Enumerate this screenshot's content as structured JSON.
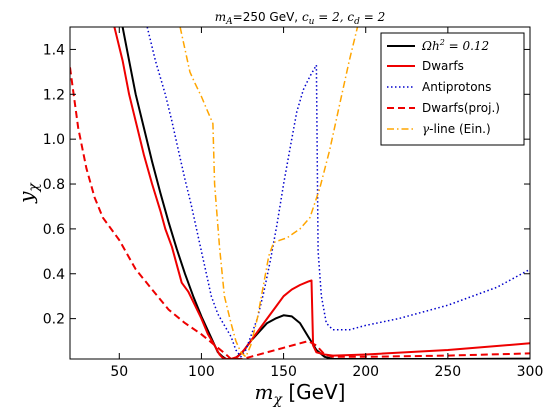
{
  "chart_data": {
    "type": "line",
    "title": "mA=250 GeV, cu=2, cd=2",
    "title_parts": {
      "ma_label": "m",
      "ma_sub": "A",
      "ma_value": "=250 GeV, ",
      "cu_label": "c",
      "cu_sub": "u",
      "cu_value": " = 2, ",
      "cd_label": "c",
      "cd_sub": "d",
      "cd_value": " = 2"
    },
    "xlabel": "mχ [GeV]",
    "xlabel_parts": {
      "var": "m",
      "sub": "χ",
      "unit": " [GeV]"
    },
    "ylabel": "yχ",
    "ylabel_parts": {
      "var": "y",
      "sub": "χ"
    },
    "xlim": [
      20,
      300
    ],
    "ylim": [
      0.02,
      1.5
    ],
    "x_ticks": [
      50,
      100,
      150,
      200,
      250,
      300
    ],
    "x_tick_labels": [
      "50",
      "100",
      "150",
      "200",
      "250",
      "300"
    ],
    "y_ticks": [
      0.2,
      0.4,
      0.6,
      0.8,
      1.0,
      1.2,
      1.4
    ],
    "y_tick_labels": [
      "0.2",
      "0.4",
      "0.6",
      "0.8",
      "1.0",
      "1.2",
      "1.4"
    ],
    "legend_position": "top-right",
    "grid": false,
    "series": [
      {
        "name": "Ωh² = 0.12",
        "legend_parts": {
          "omega": "Ω",
          "h": "h",
          "sup": "2",
          "rest": " = 0.12"
        },
        "color": "#000000",
        "style": "solid",
        "width": 2,
        "segments": [
          [
            [
              52,
              1.5
            ],
            [
              56,
              1.35
            ],
            [
              60,
              1.2
            ],
            [
              65,
              1.05
            ],
            [
              70,
              0.9
            ],
            [
              75,
              0.76
            ],
            [
              80,
              0.63
            ],
            [
              85,
              0.51
            ],
            [
              90,
              0.4
            ],
            [
              95,
              0.3
            ],
            [
              100,
              0.21
            ],
            [
              105,
              0.13
            ],
            [
              110,
              0.05
            ],
            [
              113,
              0.03
            ],
            [
              115,
              0.02
            ]
          ],
          [
            [
              120,
              0.02
            ],
            [
              125,
              0.05
            ],
            [
              130,
              0.1
            ],
            [
              135,
              0.14
            ],
            [
              140,
              0.18
            ],
            [
              145,
              0.2
            ],
            [
              150,
              0.215
            ],
            [
              155,
              0.21
            ],
            [
              160,
              0.18
            ],
            [
              165,
              0.12
            ],
            [
              170,
              0.06
            ],
            [
              175,
              0.03
            ],
            [
              180,
              0.02
            ],
            [
              200,
              0.02
            ],
            [
              250,
              0.02
            ],
            [
              300,
              0.022
            ]
          ]
        ]
      },
      {
        "name": "Dwarfs",
        "color": "#ee0000",
        "style": "solid",
        "width": 2,
        "segments": [
          [
            [
              47,
              1.5
            ],
            [
              52,
              1.35
            ],
            [
              56,
              1.2
            ],
            [
              60,
              1.08
            ],
            [
              65,
              0.93
            ],
            [
              70,
              0.8
            ],
            [
              75,
              0.68
            ],
            [
              78,
              0.6
            ],
            [
              82,
              0.52
            ],
            [
              85,
              0.44
            ],
            [
              88,
              0.36
            ],
            [
              92,
              0.32
            ],
            [
              96,
              0.26
            ],
            [
              100,
              0.2
            ],
            [
              104,
              0.13
            ],
            [
              108,
              0.08
            ],
            [
              111,
              0.04
            ],
            [
              113,
              0.025
            ],
            [
              115,
              0.02
            ],
            [
              118,
              0.02
            ],
            [
              122,
              0.03
            ],
            [
              126,
              0.06
            ],
            [
              130,
              0.1
            ],
            [
              135,
              0.15
            ],
            [
              140,
              0.2
            ],
            [
              145,
              0.25
            ],
            [
              150,
              0.3
            ],
            [
              155,
              0.33
            ],
            [
              160,
              0.35
            ],
            [
              165,
              0.365
            ],
            [
              167,
              0.37
            ],
            [
              168,
              0.08
            ],
            [
              170,
              0.05
            ],
            [
              175,
              0.04
            ],
            [
              180,
              0.035
            ],
            [
              200,
              0.04
            ],
            [
              250,
              0.06
            ],
            [
              300,
              0.09
            ]
          ]
        ]
      },
      {
        "name": "Antiprotons",
        "color": "#0000cc",
        "style": "dotted",
        "width": 1.5,
        "segments": [
          [
            [
              67,
              1.5
            ],
            [
              72,
              1.35
            ],
            [
              78,
              1.2
            ],
            [
              82,
              1.08
            ],
            [
              86,
              0.95
            ],
            [
              90,
              0.82
            ],
            [
              94,
              0.7
            ],
            [
              97,
              0.6
            ],
            [
              100,
              0.5
            ],
            [
              103,
              0.4
            ],
            [
              106,
              0.3
            ],
            [
              110,
              0.22
            ],
            [
              114,
              0.17
            ],
            [
              118,
              0.12
            ],
            [
              121,
              0.06
            ],
            [
              124,
              0.03
            ],
            [
              127,
              0.06
            ],
            [
              130,
              0.12
            ],
            [
              134,
              0.2
            ],
            [
              138,
              0.32
            ],
            [
              142,
              0.46
            ],
            [
              146,
              0.62
            ],
            [
              150,
              0.8
            ],
            [
              154,
              0.96
            ],
            [
              158,
              1.12
            ],
            [
              162,
              1.22
            ],
            [
              166,
              1.28
            ],
            [
              170,
              1.33
            ],
            [
              171,
              0.5
            ],
            [
              173,
              0.3
            ],
            [
              176,
              0.18
            ],
            [
              180,
              0.15
            ],
            [
              190,
              0.15
            ],
            [
              200,
              0.17
            ],
            [
              220,
              0.2
            ],
            [
              250,
              0.26
            ],
            [
              280,
              0.34
            ],
            [
              300,
              0.42
            ]
          ]
        ]
      },
      {
        "name": "Dwarfs(proj.)",
        "color": "#ee0000",
        "style": "dashed",
        "width": 2,
        "segments": [
          [
            [
              20,
              1.32
            ],
            [
              25,
              1.05
            ],
            [
              30,
              0.87
            ],
            [
              35,
              0.74
            ],
            [
              40,
              0.65
            ],
            [
              50,
              0.55
            ],
            [
              60,
              0.42
            ],
            [
              70,
              0.33
            ],
            [
              80,
              0.24
            ],
            [
              90,
              0.18
            ],
            [
              100,
              0.13
            ],
            [
              110,
              0.07
            ],
            [
              115,
              0.04
            ],
            [
              118,
              0.02
            ],
            [
              125,
              0.02
            ],
            [
              130,
              0.03
            ],
            [
              140,
              0.05
            ],
            [
              150,
              0.07
            ],
            [
              160,
              0.09
            ],
            [
              165,
              0.1
            ],
            [
              170,
              0.08
            ],
            [
              175,
              0.04
            ],
            [
              180,
              0.03
            ],
            [
              200,
              0.03
            ],
            [
              250,
              0.035
            ],
            [
              300,
              0.045
            ]
          ]
        ]
      },
      {
        "name": "γ-line (Ein.)",
        "legend_parts": {
          "gamma": "γ",
          "rest": "-line (Ein.)"
        },
        "color": "#ffa500",
        "style": "dashdot",
        "width": 1.5,
        "segments": [
          [
            [
              87,
              1.5
            ],
            [
              90,
              1.4
            ],
            [
              93,
              1.3
            ],
            [
              96,
              1.25
            ],
            [
              100,
              1.19
            ],
            [
              104,
              1.12
            ],
            [
              107,
              1.07
            ],
            [
              108,
              0.8
            ],
            [
              111,
              0.52
            ],
            [
              114,
              0.3
            ],
            [
              118,
              0.18
            ],
            [
              121,
              0.1
            ],
            [
              124,
              0.05
            ],
            [
              127,
              0.03
            ],
            [
              130,
              0.08
            ],
            [
              134,
              0.2
            ],
            [
              138,
              0.36
            ],
            [
              141,
              0.48
            ],
            [
              144,
              0.54
            ],
            [
              148,
              0.55
            ],
            [
              152,
              0.56
            ],
            [
              156,
              0.58
            ],
            [
              160,
              0.6
            ],
            [
              166,
              0.65
            ],
            [
              172,
              0.78
            ],
            [
              178,
              0.95
            ],
            [
              184,
              1.15
            ],
            [
              190,
              1.35
            ],
            [
              195,
              1.5
            ]
          ]
        ]
      }
    ]
  }
}
